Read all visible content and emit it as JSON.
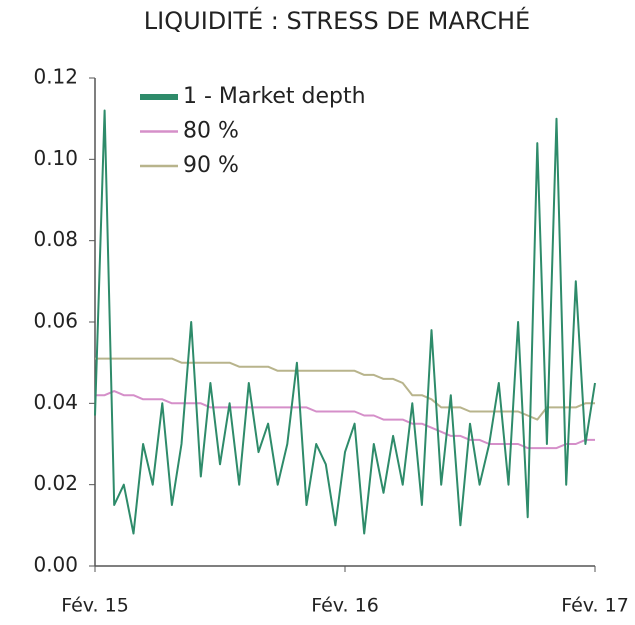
{
  "chart_data": {
    "type": "line",
    "title": "LIQUIDITÉ : STRESS DE MARCHÉ",
    "categories": [
      "Fév. 15",
      null,
      null,
      null,
      null,
      null,
      null,
      null,
      null,
      null,
      null,
      null,
      null,
      null,
      null,
      null,
      null,
      null,
      null,
      null,
      null,
      null,
      null,
      null,
      null,
      null,
      "Fév. 16",
      null,
      null,
      null,
      null,
      null,
      null,
      null,
      null,
      null,
      null,
      null,
      null,
      null,
      null,
      null,
      null,
      null,
      null,
      null,
      null,
      null,
      null,
      null,
      null,
      null,
      "Fév. 17"
    ],
    "series": [
      {
        "name": "1 - Market depth",
        "color": "#2e8b6a",
        "width": 2,
        "values": [
          0.037,
          0.112,
          0.015,
          0.02,
          0.008,
          0.03,
          0.02,
          0.04,
          0.015,
          0.03,
          0.06,
          0.022,
          0.045,
          0.025,
          0.04,
          0.02,
          0.045,
          0.028,
          0.035,
          0.02,
          0.03,
          0.05,
          0.015,
          0.03,
          0.025,
          0.01,
          0.028,
          0.035,
          0.008,
          0.03,
          0.018,
          0.032,
          0.02,
          0.04,
          0.015,
          0.058,
          0.02,
          0.042,
          0.01,
          0.035,
          0.02,
          0.03,
          0.045,
          0.02,
          0.06,
          0.012,
          0.104,
          0.03,
          0.11,
          0.02,
          0.07,
          0.03,
          0.045
        ]
      },
      {
        "name": "80 %",
        "color": "#d58fc9",
        "width": 2,
        "values": [
          0.042,
          0.042,
          0.043,
          0.042,
          0.042,
          0.041,
          0.041,
          0.041,
          0.04,
          0.04,
          0.04,
          0.04,
          0.039,
          0.039,
          0.039,
          0.039,
          0.039,
          0.039,
          0.039,
          0.039,
          0.039,
          0.039,
          0.039,
          0.038,
          0.038,
          0.038,
          0.038,
          0.038,
          0.037,
          0.037,
          0.036,
          0.036,
          0.036,
          0.035,
          0.035,
          0.034,
          0.033,
          0.032,
          0.032,
          0.031,
          0.031,
          0.03,
          0.03,
          0.03,
          0.03,
          0.029,
          0.029,
          0.029,
          0.029,
          0.03,
          0.03,
          0.031,
          0.031
        ]
      },
      {
        "name": "90 %",
        "color": "#b8b48c",
        "width": 2,
        "values": [
          0.051,
          0.051,
          0.051,
          0.051,
          0.051,
          0.051,
          0.051,
          0.051,
          0.051,
          0.05,
          0.05,
          0.05,
          0.05,
          0.05,
          0.05,
          0.049,
          0.049,
          0.049,
          0.049,
          0.048,
          0.048,
          0.048,
          0.048,
          0.048,
          0.048,
          0.048,
          0.048,
          0.048,
          0.047,
          0.047,
          0.046,
          0.046,
          0.045,
          0.042,
          0.042,
          0.041,
          0.039,
          0.039,
          0.039,
          0.038,
          0.038,
          0.038,
          0.038,
          0.038,
          0.038,
          0.037,
          0.036,
          0.039,
          0.039,
          0.039,
          0.039,
          0.04,
          0.04
        ]
      }
    ],
    "ylim": [
      0,
      0.12
    ],
    "yticks": [
      {
        "value": 0,
        "label": "0.00"
      },
      0.02,
      0.04,
      0.06,
      0.08,
      {
        "value": 0.1,
        "label": "0.10"
      },
      0.12
    ],
    "legend": "top-left"
  }
}
